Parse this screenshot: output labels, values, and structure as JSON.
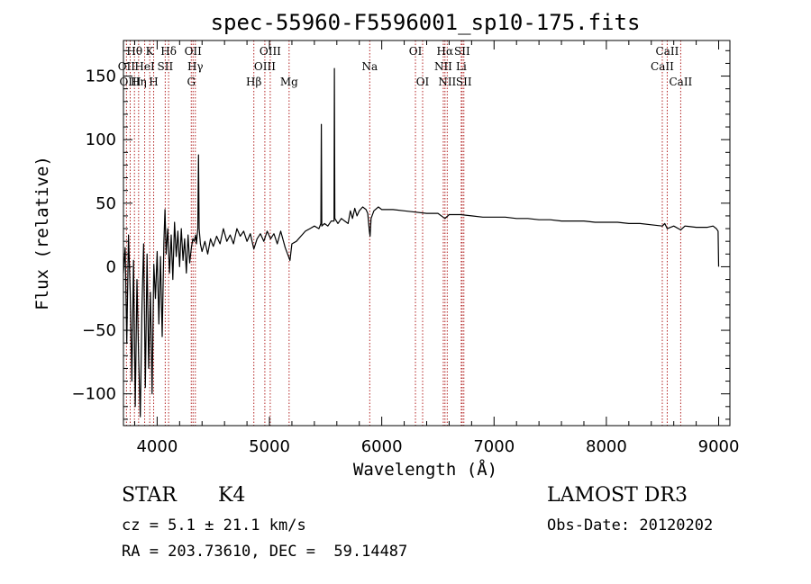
{
  "chart_data": {
    "type": "line",
    "title": "spec-55960-F5596001_sp10-175.fits",
    "xlabel": "Wavelength (Å)",
    "ylabel": "Flux (relative)",
    "xlim": [
      3700,
      9100
    ],
    "ylim": [
      -125,
      178
    ],
    "xticks": [
      4000,
      5000,
      6000,
      7000,
      8000,
      9000
    ],
    "xtick_labels": [
      "4000",
      "5000",
      "6000",
      "7000",
      "8000",
      "9000"
    ],
    "yticks": [
      -100,
      -50,
      0,
      50,
      100,
      150
    ],
    "ytick_labels": [
      "−100",
      "−50",
      "0",
      "50",
      "100",
      "150"
    ],
    "line_color": "#000000",
    "marker_color": "#b22222",
    "spectrum": [
      [
        3700,
        -5
      ],
      [
        3715,
        15
      ],
      [
        3730,
        -60
      ],
      [
        3745,
        25
      ],
      [
        3760,
        -20
      ],
      [
        3775,
        -90
      ],
      [
        3790,
        5
      ],
      [
        3805,
        -110
      ],
      [
        3820,
        -10
      ],
      [
        3835,
        -70
      ],
      [
        3850,
        -118
      ],
      [
        3865,
        -30
      ],
      [
        3880,
        18
      ],
      [
        3895,
        -95
      ],
      [
        3910,
        10
      ],
      [
        3925,
        -80
      ],
      [
        3940,
        -20
      ],
      [
        3955,
        -100
      ],
      [
        3970,
        2
      ],
      [
        3985,
        -25
      ],
      [
        4000,
        12
      ],
      [
        4015,
        -45
      ],
      [
        4030,
        8
      ],
      [
        4045,
        -55
      ],
      [
        4060,
        20
      ],
      [
        4070,
        45
      ],
      [
        4080,
        10
      ],
      [
        4095,
        30
      ],
      [
        4110,
        -5
      ],
      [
        4125,
        25
      ],
      [
        4140,
        -10
      ],
      [
        4155,
        35
      ],
      [
        4170,
        8
      ],
      [
        4185,
        28
      ],
      [
        4200,
        0
      ],
      [
        4215,
        30
      ],
      [
        4230,
        5
      ],
      [
        4245,
        22
      ],
      [
        4260,
        -5
      ],
      [
        4275,
        25
      ],
      [
        4290,
        3
      ],
      [
        4305,
        15
      ],
      [
        4318,
        22
      ],
      [
        4330,
        20
      ],
      [
        4343,
        25
      ],
      [
        4350,
        18
      ],
      [
        4362,
        30
      ],
      [
        4368,
        88
      ],
      [
        4374,
        30
      ],
      [
        4385,
        18
      ],
      [
        4400,
        12
      ],
      [
        4425,
        20
      ],
      [
        4450,
        10
      ],
      [
        4475,
        22
      ],
      [
        4500,
        16
      ],
      [
        4530,
        24
      ],
      [
        4560,
        18
      ],
      [
        4590,
        30
      ],
      [
        4620,
        20
      ],
      [
        4650,
        25
      ],
      [
        4680,
        18
      ],
      [
        4710,
        30
      ],
      [
        4740,
        24
      ],
      [
        4770,
        28
      ],
      [
        4800,
        20
      ],
      [
        4830,
        26
      ],
      [
        4861,
        14
      ],
      [
        4890,
        22
      ],
      [
        4920,
        26
      ],
      [
        4950,
        20
      ],
      [
        4980,
        28
      ],
      [
        5010,
        22
      ],
      [
        5040,
        26
      ],
      [
        5070,
        18
      ],
      [
        5100,
        28
      ],
      [
        5140,
        15
      ],
      [
        5170,
        8
      ],
      [
        5183,
        5
      ],
      [
        5200,
        18
      ],
      [
        5240,
        20
      ],
      [
        5280,
        24
      ],
      [
        5320,
        28
      ],
      [
        5360,
        30
      ],
      [
        5400,
        32
      ],
      [
        5440,
        30
      ],
      [
        5458,
        34
      ],
      [
        5462,
        112
      ],
      [
        5466,
        32
      ],
      [
        5490,
        34
      ],
      [
        5520,
        32
      ],
      [
        5550,
        36
      ],
      [
        5575,
        36
      ],
      [
        5578,
        156
      ],
      [
        5582,
        38
      ],
      [
        5610,
        34
      ],
      [
        5640,
        38
      ],
      [
        5670,
        36
      ],
      [
        5700,
        34
      ],
      [
        5720,
        44
      ],
      [
        5740,
        38
      ],
      [
        5760,
        46
      ],
      [
        5780,
        40
      ],
      [
        5800,
        44
      ],
      [
        5830,
        47
      ],
      [
        5860,
        45
      ],
      [
        5875,
        42
      ],
      [
        5890,
        28
      ],
      [
        5896,
        24
      ],
      [
        5905,
        38
      ],
      [
        5930,
        44
      ],
      [
        5970,
        47
      ],
      [
        6000,
        45
      ],
      [
        6100,
        45
      ],
      [
        6200,
        44
      ],
      [
        6300,
        43
      ],
      [
        6400,
        42
      ],
      [
        6500,
        42
      ],
      [
        6563,
        38
      ],
      [
        6600,
        41
      ],
      [
        6700,
        41
      ],
      [
        6800,
        40
      ],
      [
        6900,
        39
      ],
      [
        7000,
        39
      ],
      [
        7100,
        39
      ],
      [
        7200,
        38
      ],
      [
        7300,
        38
      ],
      [
        7400,
        37
      ],
      [
        7500,
        37
      ],
      [
        7600,
        36
      ],
      [
        7700,
        36
      ],
      [
        7800,
        36
      ],
      [
        7900,
        35
      ],
      [
        8000,
        35
      ],
      [
        8100,
        35
      ],
      [
        8200,
        34
      ],
      [
        8300,
        34
      ],
      [
        8400,
        33
      ],
      [
        8498,
        32
      ],
      [
        8520,
        34
      ],
      [
        8542,
        30
      ],
      [
        8600,
        32
      ],
      [
        8662,
        29
      ],
      [
        8700,
        32
      ],
      [
        8800,
        31
      ],
      [
        8900,
        31
      ],
      [
        8950,
        32
      ],
      [
        8980,
        30
      ],
      [
        8995,
        28
      ],
      [
        9000,
        0
      ]
    ],
    "lines": [
      {
        "label": "Hθ",
        "wave": 3798,
        "row": 1
      },
      {
        "label": "OII",
        "wave": 3727,
        "row": 2
      },
      {
        "label": "OIII",
        "wave": 3760,
        "row": 3
      },
      {
        "label": "Hη",
        "wave": 3835,
        "row": 3
      },
      {
        "label": "K",
        "wave": 3934,
        "row": 1
      },
      {
        "label": "HeI",
        "wave": 3889,
        "row": 2
      },
      {
        "label": "SII",
        "wave": 4072,
        "row": 2
      },
      {
        "label": "H",
        "wave": 3969,
        "row": 3
      },
      {
        "label": "Hδ",
        "wave": 4102,
        "row": 1
      },
      {
        "label": "OII",
        "wave": 4320,
        "row": 1
      },
      {
        "label": "Hγ",
        "wave": 4340,
        "row": 2
      },
      {
        "label": "G",
        "wave": 4304,
        "row": 3
      },
      {
        "label": "Hβ",
        "wave": 4861,
        "row": 3
      },
      {
        "label": "OIII",
        "wave": 5007,
        "row": 1
      },
      {
        "label": "OIII",
        "wave": 4959,
        "row": 2
      },
      {
        "label": "Mg",
        "wave": 5175,
        "row": 3
      },
      {
        "label": "Na",
        "wave": 5893,
        "row": 2
      },
      {
        "label": "OI",
        "wave": 6300,
        "row": 1
      },
      {
        "label": "OI",
        "wave": 6364,
        "row": 3
      },
      {
        "label": "Hα",
        "wave": 6563,
        "row": 1
      },
      {
        "label": "SII",
        "wave": 6716,
        "row": 1
      },
      {
        "label": "NII",
        "wave": 6548,
        "row": 2
      },
      {
        "label": "Li",
        "wave": 6708,
        "row": 2
      },
      {
        "label": "NII",
        "wave": 6583,
        "row": 3
      },
      {
        "label": "SII",
        "wave": 6731,
        "row": 3
      },
      {
        "label": "CaII",
        "wave": 8542,
        "row": 1
      },
      {
        "label": "CaII",
        "wave": 8498,
        "row": 2
      },
      {
        "label": "CaII",
        "wave": 8662,
        "row": 3
      }
    ]
  },
  "info": {
    "class": "STAR",
    "subclass": "K4",
    "survey": "LAMOST DR3",
    "cz": "cz = 5.1 ± 21.1 km/s",
    "obs_date": "Obs-Date: 20120202",
    "coords": "RA = 203.73610, DEC =  59.14487"
  }
}
